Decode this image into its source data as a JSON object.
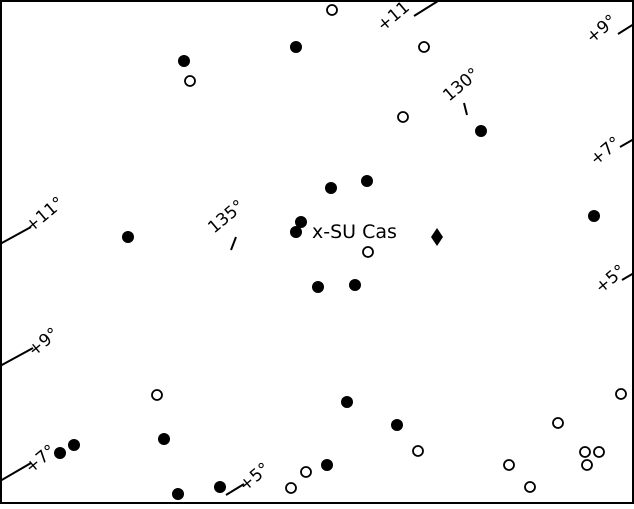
{
  "star_chart": {
    "target": "x-SU Cas",
    "right_ascension_labels": [
      "130°",
      "135°"
    ],
    "declination_labels": [
      "+11°",
      "+9°",
      "+7°",
      "+5°",
      "+11°",
      "+9°",
      "+7°",
      "+5°",
      "+5°"
    ],
    "symbols": {
      "filled": "filled-star-marker",
      "open": "open-star-marker",
      "diamond": "diamond-marker"
    },
    "colors": {
      "ink": "#000000",
      "paper": "#ffffff"
    }
  }
}
